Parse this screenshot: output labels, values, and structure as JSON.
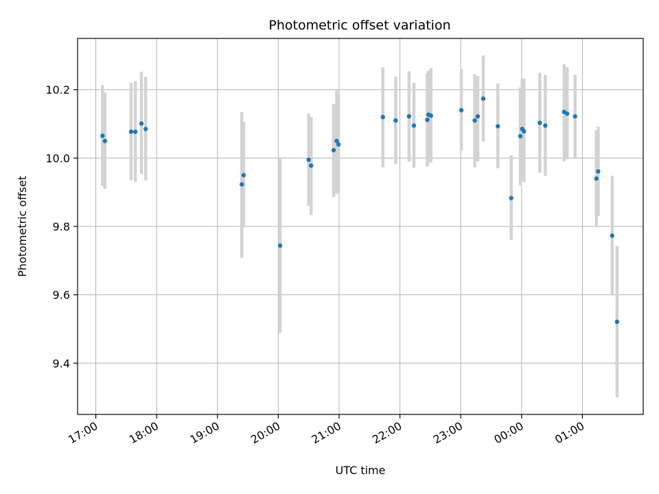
{
  "chart_data": {
    "type": "scatter",
    "title": "Photometric offset variation",
    "xlabel": "UTC time",
    "ylabel": "Photometric offset",
    "x_unit": "hours after 17:00 UTC",
    "xlim": [
      -0.3,
      9.0
    ],
    "ylim": [
      9.25,
      10.35
    ],
    "x_ticks": [
      {
        "value": 0,
        "label": "17:00"
      },
      {
        "value": 1,
        "label": "18:00"
      },
      {
        "value": 2,
        "label": "19:00"
      },
      {
        "value": 3,
        "label": "20:00"
      },
      {
        "value": 4,
        "label": "21:00"
      },
      {
        "value": 5,
        "label": "22:00"
      },
      {
        "value": 6,
        "label": "23:00"
      },
      {
        "value": 7,
        "label": "00:00"
      },
      {
        "value": 8,
        "label": "01:00"
      }
    ],
    "y_ticks": [
      {
        "value": 9.4,
        "label": "9.4"
      },
      {
        "value": 9.6,
        "label": "9.6"
      },
      {
        "value": 9.8,
        "label": "9.8"
      },
      {
        "value": 10.0,
        "label": "10.0"
      },
      {
        "value": 10.2,
        "label": "10.2"
      }
    ],
    "grid": true,
    "colors": {
      "point": "#1f77b4",
      "errorbar": "#d3d3d3",
      "grid": "#b0b0b0"
    },
    "points": [
      {
        "x": 0.11,
        "y": 10.065,
        "lo": 9.918,
        "hi": 10.213
      },
      {
        "x": 0.15,
        "y": 10.05,
        "lo": 9.91,
        "hi": 10.192
      },
      {
        "x": 0.58,
        "y": 10.077,
        "lo": 9.935,
        "hi": 10.22
      },
      {
        "x": 0.65,
        "y": 10.077,
        "lo": 9.93,
        "hi": 10.225
      },
      {
        "x": 0.75,
        "y": 10.101,
        "lo": 9.953,
        "hi": 10.253
      },
      {
        "x": 0.82,
        "y": 10.085,
        "lo": 9.935,
        "hi": 10.237
      },
      {
        "x": 2.4,
        "y": 9.923,
        "lo": 9.708,
        "hi": 10.135
      },
      {
        "x": 2.43,
        "y": 9.95,
        "lo": 9.798,
        "hi": 10.106
      },
      {
        "x": 3.03,
        "y": 9.744,
        "lo": 9.489,
        "hi": 9.998
      },
      {
        "x": 3.5,
        "y": 9.995,
        "lo": 9.86,
        "hi": 10.13
      },
      {
        "x": 3.54,
        "y": 9.978,
        "lo": 9.833,
        "hi": 10.12
      },
      {
        "x": 3.91,
        "y": 10.023,
        "lo": 9.886,
        "hi": 10.158
      },
      {
        "x": 3.96,
        "y": 10.05,
        "lo": 9.895,
        "hi": 10.2
      },
      {
        "x": 3.99,
        "y": 10.04,
        "lo": 9.9,
        "hi": 10.187
      },
      {
        "x": 4.72,
        "y": 10.12,
        "lo": 9.973,
        "hi": 10.265
      },
      {
        "x": 4.93,
        "y": 10.11,
        "lo": 9.982,
        "hi": 10.238
      },
      {
        "x": 5.15,
        "y": 10.122,
        "lo": 9.99,
        "hi": 10.254
      },
      {
        "x": 5.23,
        "y": 10.095,
        "lo": 9.972,
        "hi": 10.22
      },
      {
        "x": 5.45,
        "y": 10.112,
        "lo": 9.975,
        "hi": 10.248
      },
      {
        "x": 5.47,
        "y": 10.127,
        "lo": 9.987,
        "hi": 10.256
      },
      {
        "x": 5.51,
        "y": 10.124,
        "lo": 9.987,
        "hi": 10.263
      },
      {
        "x": 6.01,
        "y": 10.14,
        "lo": 10.022,
        "hi": 10.26
      },
      {
        "x": 6.23,
        "y": 10.11,
        "lo": 9.973,
        "hi": 10.245
      },
      {
        "x": 6.28,
        "y": 10.122,
        "lo": 9.99,
        "hi": 10.24
      },
      {
        "x": 6.37,
        "y": 10.174,
        "lo": 10.048,
        "hi": 10.3
      },
      {
        "x": 6.61,
        "y": 10.093,
        "lo": 9.97,
        "hi": 10.218
      },
      {
        "x": 6.83,
        "y": 9.883,
        "lo": 9.76,
        "hi": 10.008
      },
      {
        "x": 6.98,
        "y": 10.064,
        "lo": 9.92,
        "hi": 10.207
      },
      {
        "x": 7.01,
        "y": 10.085,
        "lo": 9.936,
        "hi": 10.233
      },
      {
        "x": 7.04,
        "y": 10.078,
        "lo": 9.93,
        "hi": 10.232
      },
      {
        "x": 7.3,
        "y": 10.103,
        "lo": 9.957,
        "hi": 10.25
      },
      {
        "x": 7.39,
        "y": 10.095,
        "lo": 9.948,
        "hi": 10.243
      },
      {
        "x": 7.7,
        "y": 10.135,
        "lo": 9.99,
        "hi": 10.275
      },
      {
        "x": 7.75,
        "y": 10.13,
        "lo": 9.997,
        "hi": 10.266
      },
      {
        "x": 7.88,
        "y": 10.122,
        "lo": 10.0,
        "hi": 10.243
      },
      {
        "x": 8.23,
        "y": 9.94,
        "lo": 9.8,
        "hi": 10.082
      },
      {
        "x": 8.26,
        "y": 9.961,
        "lo": 9.83,
        "hi": 10.092
      },
      {
        "x": 8.49,
        "y": 9.773,
        "lo": 9.6,
        "hi": 9.948
      },
      {
        "x": 8.57,
        "y": 9.521,
        "lo": 9.3,
        "hi": 9.743
      }
    ]
  }
}
